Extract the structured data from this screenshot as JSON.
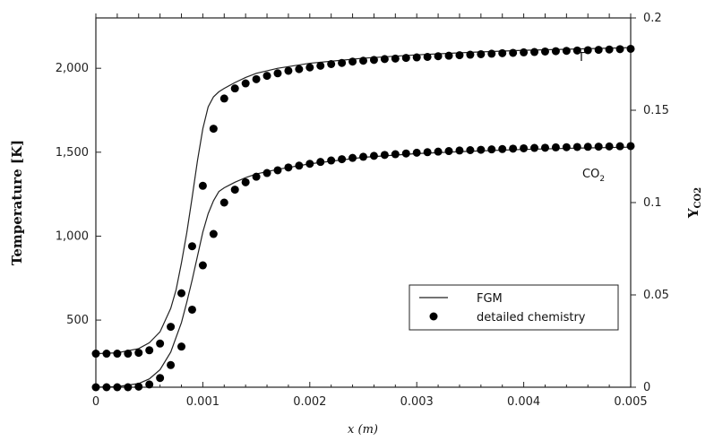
{
  "chart_data": {
    "type": "line",
    "xlabel": "x (m)",
    "ylabel_left": "Temperature [K]",
    "ylabel_right_main": "Y",
    "ylabel_right_sub": "CO2",
    "xlim": [
      0,
      0.005
    ],
    "ylim_left": [
      100,
      2300
    ],
    "ylim_right": [
      0,
      0.2
    ],
    "x_ticks": [
      "0",
      "0.001",
      "0.002",
      "0.003",
      "0.004",
      "0.005"
    ],
    "y_left_ticks": [
      "500",
      "1,000",
      "1,500",
      "2,000"
    ],
    "y_right_ticks": [
      "0",
      "0.05",
      "0.1",
      "0.15",
      "0.2"
    ],
    "grid": false,
    "legend_position": "lower-right",
    "legend": {
      "line_label": "FGM",
      "marker_label": "detailed chemistry"
    },
    "annotations": {
      "temperature": "T",
      "co2_main": "CO",
      "co2_sub": "2"
    },
    "series": [
      {
        "name": "FGM",
        "quantity": "T",
        "axis": "left",
        "style": "line",
        "x": [
          0,
          0.0002,
          0.0004,
          0.0005,
          0.0006,
          0.0007,
          0.00075,
          0.0008,
          0.00085,
          0.0009,
          0.00095,
          0.001,
          0.00105,
          0.0011,
          0.00115,
          0.0012,
          0.0013,
          0.0014,
          0.0015,
          0.0017,
          0.002,
          0.0025,
          0.003,
          0.0035,
          0.004,
          0.0045,
          0.005
        ],
        "y": [
          300,
          305,
          330,
          365,
          430,
          570,
          680,
          840,
          1020,
          1230,
          1450,
          1640,
          1770,
          1830,
          1860,
          1880,
          1915,
          1945,
          1970,
          2000,
          2030,
          2060,
          2080,
          2095,
          2107,
          2115,
          2123
        ]
      },
      {
        "name": "detailed chemistry",
        "quantity": "T",
        "axis": "left",
        "style": "markers",
        "x": [
          0,
          0.0001,
          0.0002,
          0.0003,
          0.0004,
          0.0005,
          0.0006,
          0.0007,
          0.0008,
          0.0009,
          0.001,
          0.0011,
          0.0012,
          0.0013,
          0.0014,
          0.0015,
          0.0016,
          0.0017,
          0.0018,
          0.0019,
          0.002,
          0.0021,
          0.0022,
          0.0023,
          0.0024,
          0.0025,
          0.0026,
          0.0027,
          0.0028,
          0.0029,
          0.003,
          0.0031,
          0.0032,
          0.0033,
          0.0034,
          0.0035,
          0.0036,
          0.0037,
          0.0038,
          0.0039,
          0.004,
          0.0041,
          0.0042,
          0.0043,
          0.0044,
          0.0045,
          0.0046,
          0.0047,
          0.0048,
          0.0049,
          0.005
        ],
        "y": [
          300,
          300,
          300,
          300,
          305,
          320,
          360,
          460,
          660,
          940,
          1300,
          1640,
          1820,
          1880,
          1910,
          1935,
          1955,
          1970,
          1985,
          1995,
          2005,
          2015,
          2025,
          2032,
          2040,
          2045,
          2050,
          2055,
          2058,
          2062,
          2065,
          2068,
          2072,
          2075,
          2078,
          2081,
          2084,
          2087,
          2090,
          2092,
          2095,
          2097,
          2100,
          2102,
          2104,
          2106,
          2108,
          2110,
          2112,
          2114,
          2116
        ]
      },
      {
        "name": "FGM",
        "quantity": "CO2",
        "axis": "right",
        "style": "line",
        "x": [
          0,
          0.0002,
          0.0004,
          0.0005,
          0.0006,
          0.0007,
          0.0008,
          0.00085,
          0.0009,
          0.00095,
          0.001,
          0.00105,
          0.0011,
          0.00115,
          0.0012,
          0.0013,
          0.0014,
          0.0015,
          0.0017,
          0.002,
          0.0025,
          0.003,
          0.0035,
          0.004,
          0.0045,
          0.005
        ],
        "y": [
          0,
          0.0003,
          0.002,
          0.0045,
          0.0095,
          0.019,
          0.035,
          0.046,
          0.058,
          0.071,
          0.084,
          0.094,
          0.101,
          0.106,
          0.108,
          0.111,
          0.1135,
          0.1155,
          0.118,
          0.121,
          0.1245,
          0.1265,
          0.1278,
          0.1288,
          0.1295,
          0.13
        ]
      },
      {
        "name": "detailed chemistry",
        "quantity": "CO2",
        "axis": "right",
        "style": "markers",
        "x": [
          0,
          0.0001,
          0.0002,
          0.0003,
          0.0004,
          0.0005,
          0.0006,
          0.0007,
          0.0008,
          0.0009,
          0.001,
          0.0011,
          0.0012,
          0.0013,
          0.0014,
          0.0015,
          0.0016,
          0.0017,
          0.0018,
          0.0019,
          0.002,
          0.0021,
          0.0022,
          0.0023,
          0.0024,
          0.0025,
          0.0026,
          0.0027,
          0.0028,
          0.0029,
          0.003,
          0.0031,
          0.0032,
          0.0033,
          0.0034,
          0.0035,
          0.0036,
          0.0037,
          0.0038,
          0.0039,
          0.004,
          0.0041,
          0.0042,
          0.0043,
          0.0044,
          0.0045,
          0.0046,
          0.0047,
          0.0048,
          0.0049,
          0.005
        ],
        "y": [
          0,
          0,
          0,
          0,
          0.0003,
          0.0015,
          0.005,
          0.012,
          0.022,
          0.042,
          0.066,
          0.083,
          0.1,
          0.107,
          0.111,
          0.114,
          0.116,
          0.1175,
          0.119,
          0.12,
          0.121,
          0.122,
          0.1228,
          0.1235,
          0.1242,
          0.1248,
          0.1253,
          0.1258,
          0.1262,
          0.1266,
          0.127,
          0.1273,
          0.1276,
          0.1279,
          0.1282,
          0.1284,
          0.1286,
          0.1288,
          0.129,
          0.1292,
          0.1294,
          0.1296,
          0.1297,
          0.1299,
          0.13,
          0.1301,
          0.1302,
          0.1303,
          0.1304,
          0.1305,
          0.1306
        ]
      }
    ]
  }
}
